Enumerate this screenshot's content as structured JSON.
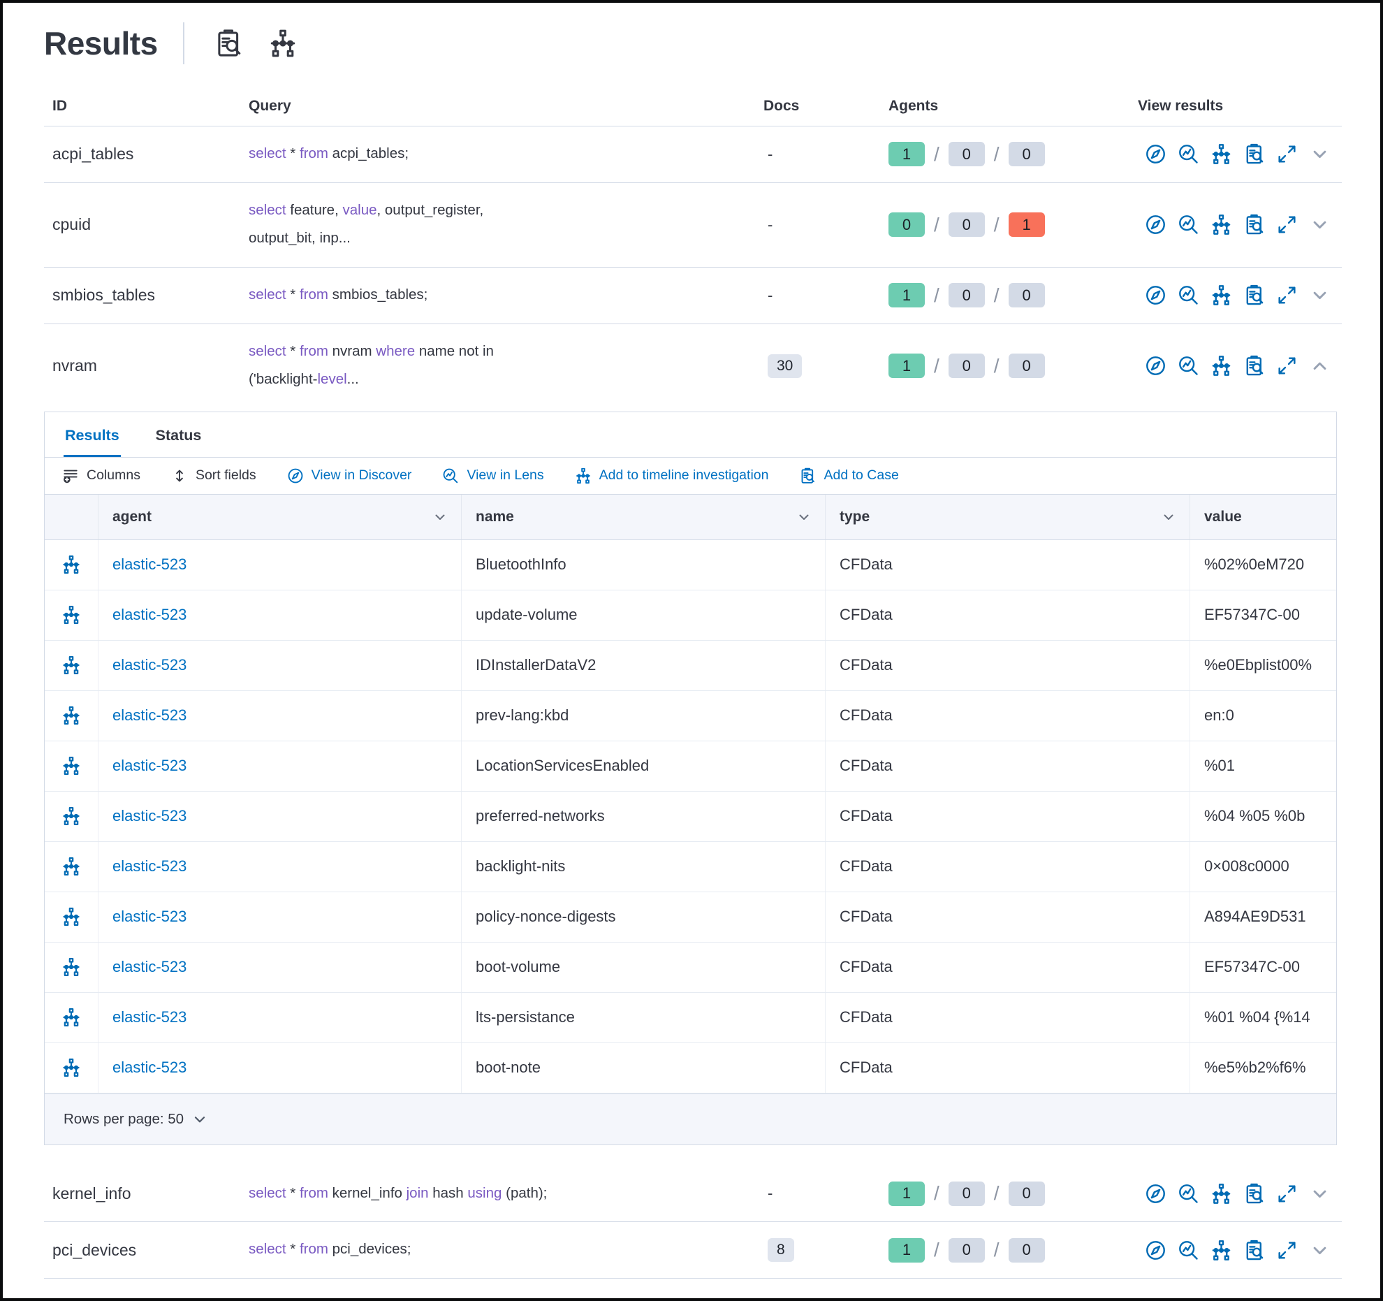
{
  "colors": {
    "link": "#0071c2",
    "iconblue": "#006bb4",
    "kw": "#7a5ac2",
    "text": "#343741",
    "green": "#6dccb1",
    "graybadge": "#d3dae6",
    "red": "#f8715a",
    "docsbadge": "#e0e5ee",
    "border": "#d3dae6",
    "headbg": "#f4f6fb"
  },
  "page": {
    "title": "Results"
  },
  "header": {
    "icons": [
      "inspect",
      "timeline"
    ]
  },
  "results_table": {
    "columns": [
      "ID",
      "Query",
      "Docs",
      "Agents",
      "View results"
    ],
    "action_icons": [
      "compass",
      "lens",
      "timeline",
      "inspect",
      "expand"
    ],
    "rows_top": [
      {
        "id": "acpi_tables",
        "docs": "-",
        "docs_badge": false,
        "agents": [
          "1",
          "0",
          "0"
        ],
        "failed_alert": false,
        "expanded": false,
        "query": [
          {
            "t": "select",
            "kw": true
          },
          {
            "t": " * ",
            "kw": false
          },
          {
            "t": "from",
            "kw": true
          },
          {
            "t": " acpi_tables;",
            "kw": false
          }
        ]
      },
      {
        "id": "cpuid",
        "docs": "-",
        "docs_badge": false,
        "agents": [
          "0",
          "0",
          "1"
        ],
        "failed_alert": true,
        "expanded": false,
        "query": [
          {
            "t": "select",
            "kw": true
          },
          {
            "t": " feature, ",
            "kw": false
          },
          {
            "t": "value",
            "kw": true
          },
          {
            "t": ", output_register,\noutput_bit, inp...",
            "kw": false
          }
        ]
      },
      {
        "id": "smbios_tables",
        "docs": "-",
        "docs_badge": false,
        "agents": [
          "1",
          "0",
          "0"
        ],
        "failed_alert": false,
        "expanded": false,
        "query": [
          {
            "t": "select",
            "kw": true
          },
          {
            "t": " * ",
            "kw": false
          },
          {
            "t": "from",
            "kw": true
          },
          {
            "t": " smbios_tables;",
            "kw": false
          }
        ]
      },
      {
        "id": "nvram",
        "docs": "30",
        "docs_badge": true,
        "agents": [
          "1",
          "0",
          "0"
        ],
        "failed_alert": false,
        "expanded": true,
        "query": [
          {
            "t": "select",
            "kw": true
          },
          {
            "t": " * ",
            "kw": false
          },
          {
            "t": "from",
            "kw": true
          },
          {
            "t": " nvram ",
            "kw": false
          },
          {
            "t": "where",
            "kw": true
          },
          {
            "t": " name not in\n('backlight-",
            "kw": false
          },
          {
            "t": "level",
            "kw": true
          },
          {
            "t": "...",
            "kw": false
          }
        ]
      }
    ],
    "rows_bottom": [
      {
        "id": "kernel_info",
        "docs": "-",
        "docs_badge": false,
        "agents": [
          "1",
          "0",
          "0"
        ],
        "failed_alert": false,
        "expanded": false,
        "query": [
          {
            "t": "select",
            "kw": true
          },
          {
            "t": " * ",
            "kw": false
          },
          {
            "t": "from",
            "kw": true
          },
          {
            "t": " kernel_info ",
            "kw": false
          },
          {
            "t": "join",
            "kw": true
          },
          {
            "t": " hash ",
            "kw": false
          },
          {
            "t": "using",
            "kw": true
          },
          {
            "t": " (path);",
            "kw": false
          }
        ]
      },
      {
        "id": "pci_devices",
        "docs": "8",
        "docs_badge": true,
        "agents": [
          "1",
          "0",
          "0"
        ],
        "failed_alert": false,
        "expanded": false,
        "query": [
          {
            "t": "select",
            "kw": true
          },
          {
            "t": " * ",
            "kw": false
          },
          {
            "t": "from",
            "kw": true
          },
          {
            "t": " pci_devices;",
            "kw": false
          }
        ]
      }
    ]
  },
  "panel": {
    "tabs": [
      {
        "label": "Results",
        "active": true
      },
      {
        "label": "Status",
        "active": false
      }
    ],
    "toolbar": [
      {
        "label": "Columns",
        "icon": "columns",
        "primary": false
      },
      {
        "label": "Sort fields",
        "icon": "sort",
        "primary": false
      },
      {
        "label": "View in Discover",
        "icon": "compass",
        "primary": true
      },
      {
        "label": "View in Lens",
        "icon": "lens",
        "primary": true
      },
      {
        "label": "Add to timeline investigation",
        "icon": "timeline",
        "primary": true
      },
      {
        "label": "Add to Case",
        "icon": "inspect",
        "primary": true
      }
    ],
    "grid": {
      "columns": [
        {
          "label": "agent",
          "sortable": true
        },
        {
          "label": "name",
          "sortable": true
        },
        {
          "label": "type",
          "sortable": true
        },
        {
          "label": "value",
          "sortable": false
        }
      ],
      "rows": [
        {
          "agent": "elastic-523",
          "name": "BluetoothInfo",
          "type": "CFData",
          "value": "%02%0eM720"
        },
        {
          "agent": "elastic-523",
          "name": "update-volume",
          "type": "CFData",
          "value": "EF57347C-00"
        },
        {
          "agent": "elastic-523",
          "name": "IDInstallerDataV2",
          "type": "CFData",
          "value": "%e0Ebplist00%"
        },
        {
          "agent": "elastic-523",
          "name": "prev-lang:kbd",
          "type": "CFData",
          "value": "en:0"
        },
        {
          "agent": "elastic-523",
          "name": "LocationServicesEnabled",
          "type": "CFData",
          "value": "%01"
        },
        {
          "agent": "elastic-523",
          "name": "preferred-networks",
          "type": "CFData",
          "value": "%04 %05 %0b"
        },
        {
          "agent": "elastic-523",
          "name": "backlight-nits",
          "type": "CFData",
          "value": "0×008c0000"
        },
        {
          "agent": "elastic-523",
          "name": "policy-nonce-digests",
          "type": "CFData",
          "value": "A894AE9D531"
        },
        {
          "agent": "elastic-523",
          "name": "boot-volume",
          "type": "CFData",
          "value": "EF57347C-00"
        },
        {
          "agent": "elastic-523",
          "name": "lts-persistance",
          "type": "CFData",
          "value": "%01 %04 {%14"
        },
        {
          "agent": "elastic-523",
          "name": "boot-note",
          "type": "CFData",
          "value": "%e5%b2%f6%"
        }
      ],
      "footer": {
        "rows_per_page_label": "Rows per page: 50"
      }
    }
  }
}
